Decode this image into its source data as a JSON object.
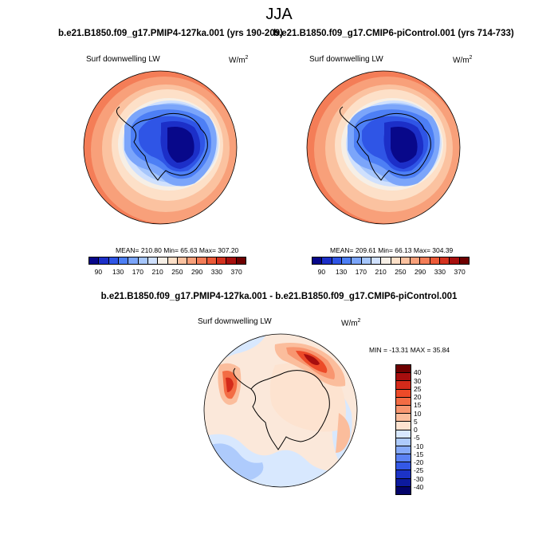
{
  "figure": {
    "title": "JJA",
    "panel_left_title": "b.e21.B1850.f09_g17.PMIP4-127ka.001 (yrs 190-209)",
    "panel_right_title": "b.e21.B1850.f09_g17.CMIP6-piControl.001 (yrs 714-733)",
    "diff_title": "b.e21.B1850.f09_g17.PMIP4-127ka.001 - b.e21.B1850.f09_g17.CMIP6-piControl.001"
  },
  "panels": {
    "left": {
      "variable": "Surf downwelling LW",
      "units_base": "W/m",
      "units_exp": "2",
      "stats": "MEAN= 210.80  Min= 65.63  Max= 307.20"
    },
    "right": {
      "variable": "Surf downwelling LW",
      "units_base": "W/m",
      "units_exp": "2",
      "stats": "MEAN= 209.61  Min= 66.13  Max= 304.39"
    },
    "diff": {
      "variable": "Surf downwelling LW",
      "units_base": "W/m",
      "units_exp": "2",
      "stats": "MIN = -13.31 MAX = 35.84"
    }
  },
  "colorbars": {
    "abs_labels": [
      "90",
      "130",
      "170",
      "210",
      "250",
      "290",
      "330",
      "370"
    ],
    "abs_colors": [
      "#08088a",
      "#1c2fc8",
      "#2f55e6",
      "#4d7ff5",
      "#7ba5fa",
      "#a6c6fc",
      "#cfe0fd",
      "#f6efe6",
      "#fde0c8",
      "#fbc2a0",
      "#f8a07a",
      "#f47d57",
      "#ec5a38",
      "#d4321f",
      "#a7100e",
      "#6e0000"
    ],
    "diff_labels": [
      "40",
      "30",
      "25",
      "20",
      "15",
      "10",
      "5",
      "0",
      "-5",
      "-10",
      "-15",
      "-20",
      "-25",
      "-30",
      "-40"
    ],
    "diff_colors": [
      "#6e0000",
      "#a70e0e",
      "#d42a1a",
      "#ec4a28",
      "#f36c44",
      "#f89670",
      "#fbbd9c",
      "#fde3d0",
      "#d8e8fe",
      "#aecbfc",
      "#86aafa",
      "#5b82f4",
      "#3458e6",
      "#1c33c6",
      "#0c1a9e",
      "#03036a"
    ]
  },
  "colors": {
    "ocean_warm": "#f47d57",
    "ocean_mid": "#fbc2a0",
    "ice_deep": "#08088a",
    "ice_mid": "#2f55e6",
    "diff_bg": "#fbe8da",
    "diff_cool": "#cfe2fd",
    "diff_hot": "#d4321f"
  }
}
